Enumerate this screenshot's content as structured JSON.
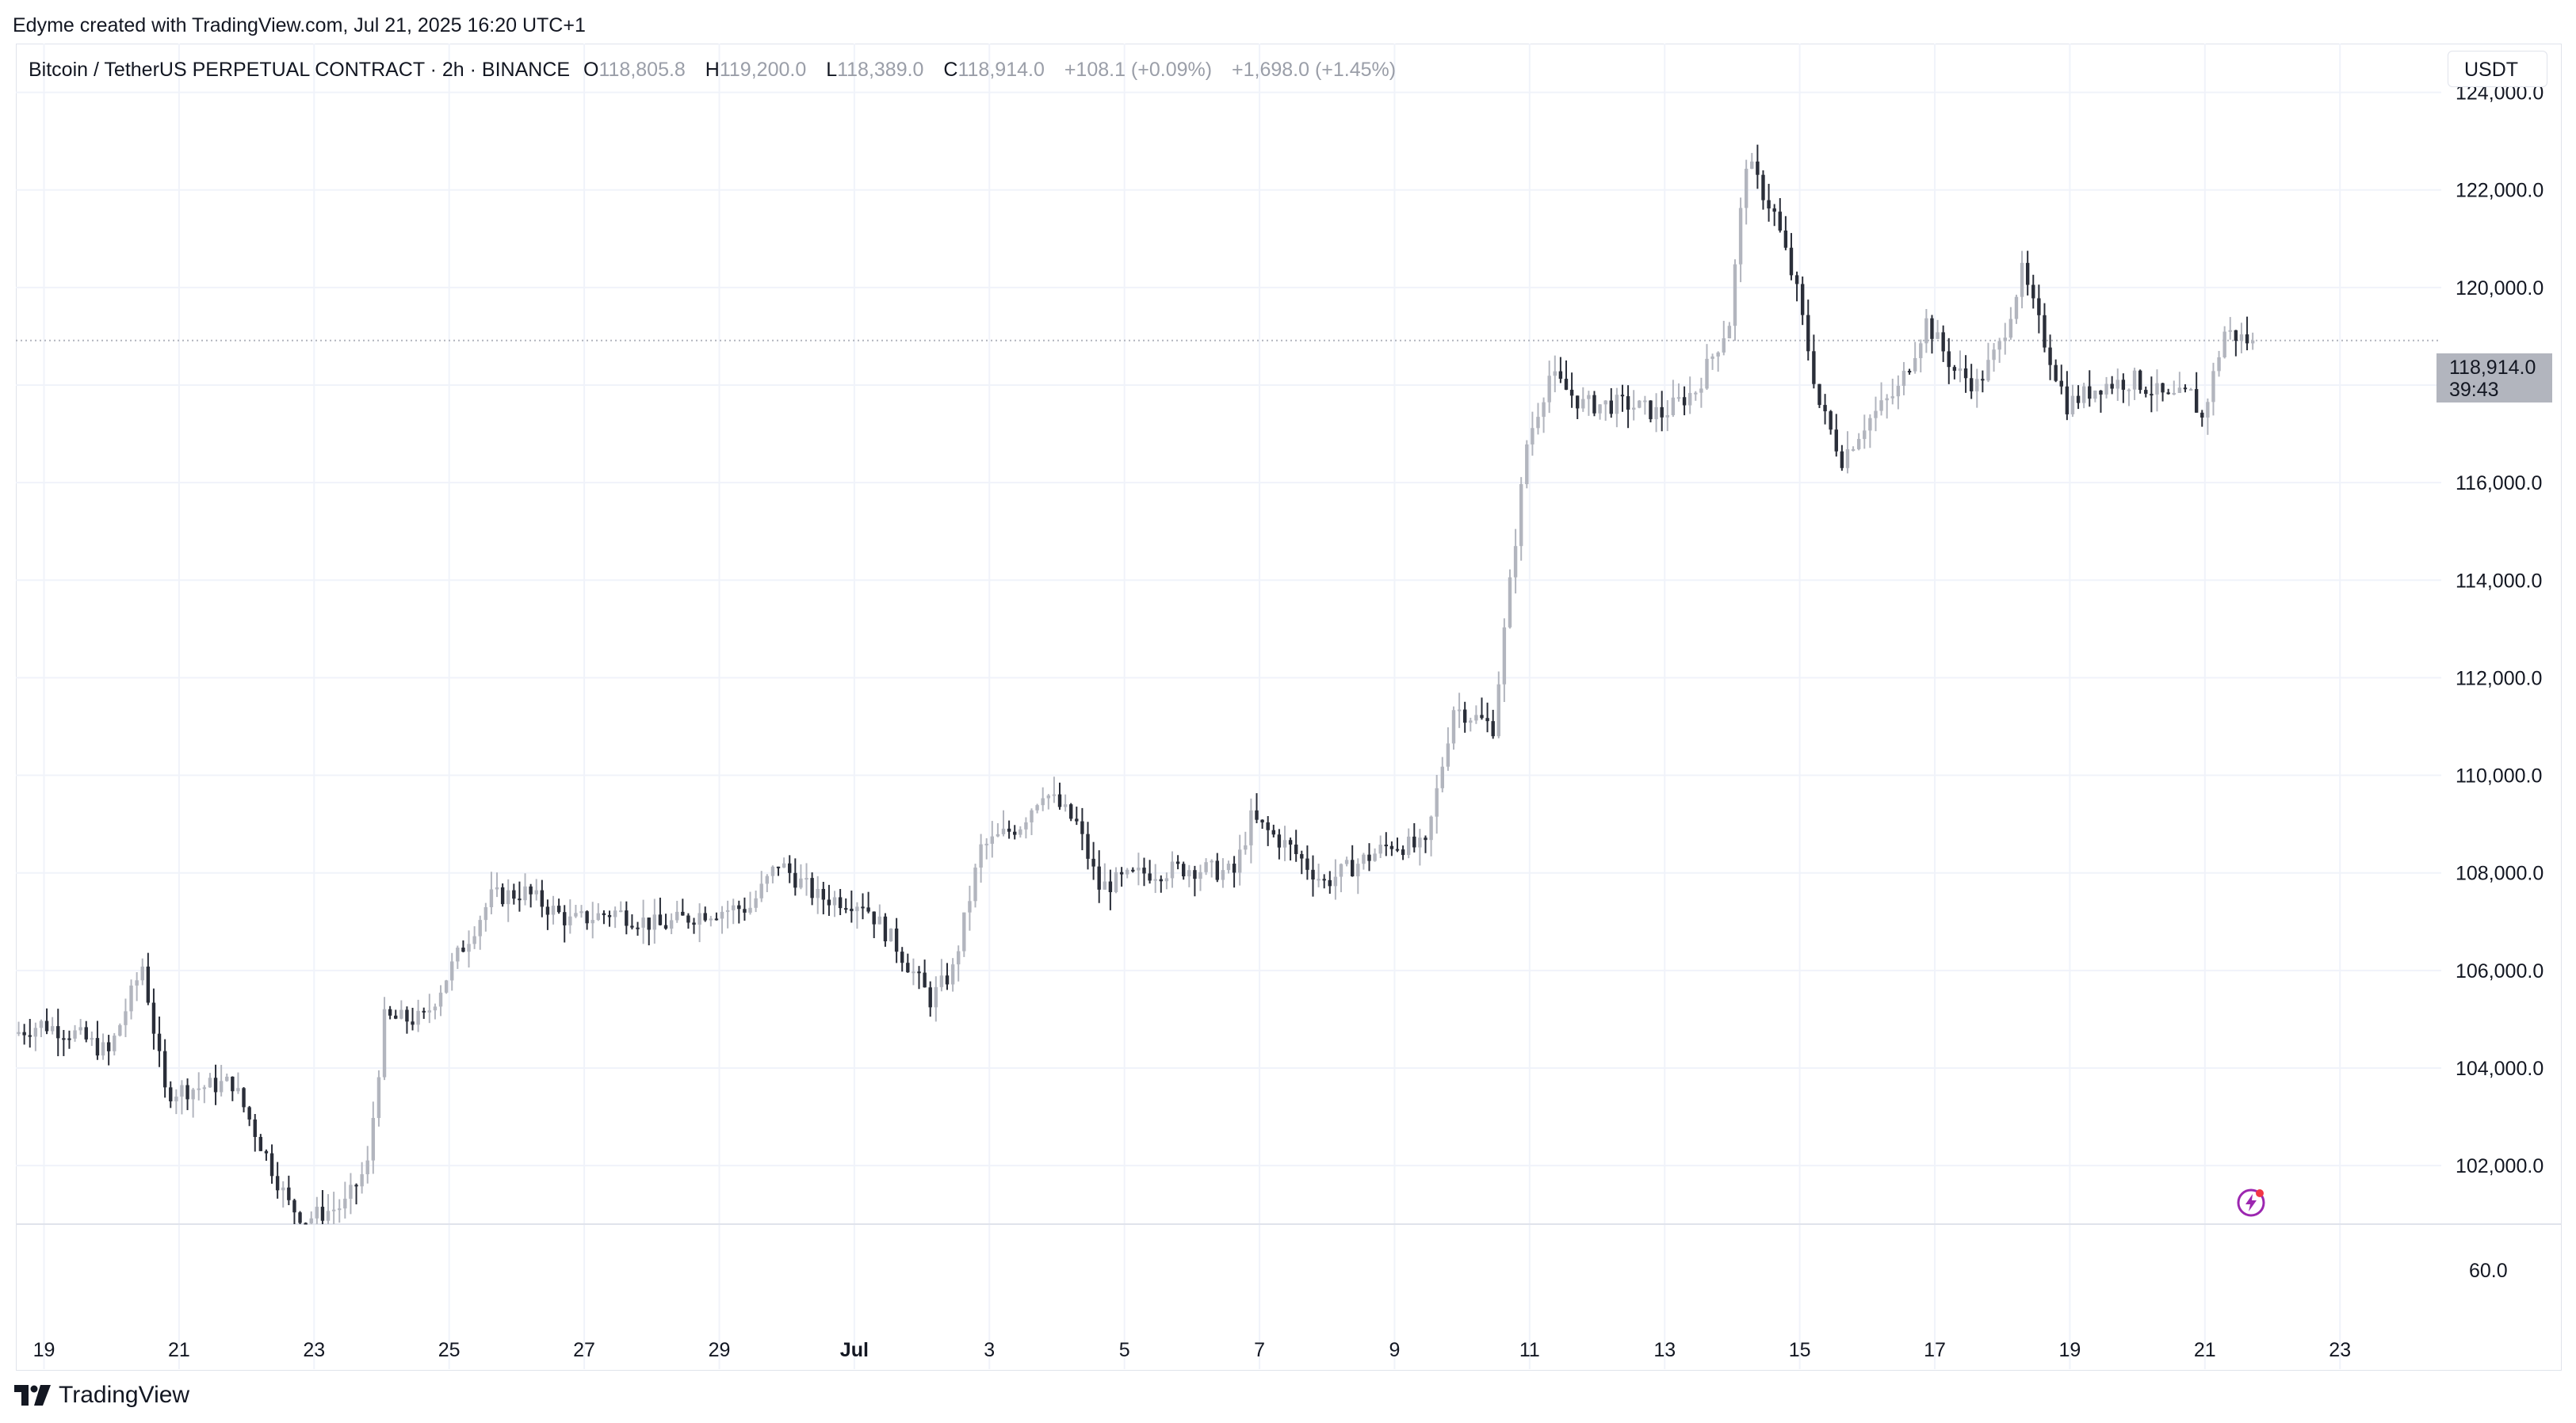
{
  "attribution": "Edyme created with TradingView.com, Jul 21, 2025 16:20 UTC+1",
  "legend": {
    "symbol": "Bitcoin / TetherUS PERPETUAL CONTRACT · 2h · BINANCE",
    "open_label": "O",
    "open": "118,805.8",
    "high_label": "H",
    "high": "119,200.0",
    "low_label": "L",
    "low": "118,389.0",
    "close_label": "C",
    "close": "118,914.0",
    "change": "+108.1 (+0.09%)",
    "change2": "+1,698.0 (+1.45%)"
  },
  "currency_button": "USDT",
  "price_tag": {
    "price": "118,914.0",
    "countdown": "39:43"
  },
  "footer": {
    "brand": "TradingView"
  },
  "icons": {
    "lightning": "lightning-icon",
    "logo": "tradingview-logo-icon"
  },
  "colors": {
    "candle_up": "#b2b5be",
    "candle_down": "#2a2e39",
    "grid": "#f0f3fa",
    "bolt": "#9c27b0"
  },
  "chart_data": {
    "type": "candlestick",
    "y_ticks": [
      "124,000.0",
      "122,000.0",
      "120,000.0",
      "118,000.0",
      "116,000.0",
      "114,000.0",
      "112,000.0",
      "110,000.0",
      "108,000.0",
      "106,000.0",
      "104,000.0",
      "102,000.0"
    ],
    "y_tick_values": [
      124000,
      122000,
      120000,
      118000,
      116000,
      114000,
      112000,
      110000,
      108000,
      106000,
      104000,
      102000
    ],
    "ylim": [
      100800,
      125000
    ],
    "lower_pane_tick": "60.0",
    "x_ticks": [
      "19",
      "21",
      "23",
      "25",
      "27",
      "29",
      "Jul",
      "3",
      "5",
      "7",
      "9",
      "11",
      "13",
      "15",
      "17",
      "19",
      "21",
      "23"
    ],
    "x_tick_dates": [
      "2025-06-19",
      "2025-06-21",
      "2025-06-23",
      "2025-06-25",
      "2025-06-27",
      "2025-06-29",
      "2025-07-01",
      "2025-07-03",
      "2025-07-05",
      "2025-07-07",
      "2025-07-09",
      "2025-07-11",
      "2025-07-13",
      "2025-07-15",
      "2025-07-17",
      "2025-07-19",
      "2025-07-21",
      "2025-07-23"
    ],
    "xlim": [
      "2025-06-18T14:00",
      "2025-07-24T12:00"
    ],
    "last_price": 118914.0,
    "daily_path": [
      [
        "2025-06-18T14:00",
        104700
      ],
      [
        "2025-06-19T00:00",
        104900
      ],
      [
        "2025-06-19T12:00",
        104700
      ],
      [
        "2025-06-20T00:00",
        104300
      ],
      [
        "2025-06-20T12:00",
        106100
      ],
      [
        "2025-06-20T20:00",
        103500
      ],
      [
        "2025-06-21T08:00",
        103600
      ],
      [
        "2025-06-21T20:00",
        103700
      ],
      [
        "2025-06-22T08:00",
        102200
      ],
      [
        "2025-06-22T16:00",
        101200
      ],
      [
        "2025-06-22T22:00",
        100900
      ],
      [
        "2025-06-23T12:00",
        101200
      ],
      [
        "2025-06-23T20:00",
        102000
      ],
      [
        "2025-06-24T02:00",
        105000
      ],
      [
        "2025-06-24T16:00",
        105000
      ],
      [
        "2025-06-25T04:00",
        106300
      ],
      [
        "2025-06-25T16:00",
        107500
      ],
      [
        "2025-06-26T04:00",
        107600
      ],
      [
        "2025-06-26T20:00",
        107000
      ],
      [
        "2025-06-27T12:00",
        107200
      ],
      [
        "2025-06-28T04:00",
        106900
      ],
      [
        "2025-06-28T20:00",
        107200
      ],
      [
        "2025-06-29T12:00",
        107300
      ],
      [
        "2025-06-29T22:00",
        108200
      ],
      [
        "2025-06-30T12:00",
        107500
      ],
      [
        "2025-07-01T04:00",
        107400
      ],
      [
        "2025-07-01T16:00",
        106500
      ],
      [
        "2025-07-02T04:00",
        105400
      ],
      [
        "2025-07-02T12:00",
        106000
      ],
      [
        "2025-07-02T22:00",
        108500
      ],
      [
        "2025-07-03T12:00",
        109000
      ],
      [
        "2025-07-03T20:00",
        109700
      ],
      [
        "2025-07-04T08:00",
        109000
      ],
      [
        "2025-07-04T16:00",
        107700
      ],
      [
        "2025-07-05T08:00",
        108000
      ],
      [
        "2025-07-06T00:00",
        108100
      ],
      [
        "2025-07-06T16:00",
        108000
      ],
      [
        "2025-07-06T22:00",
        109100
      ],
      [
        "2025-07-07T12:00",
        108500
      ],
      [
        "2025-07-08T00:00",
        107800
      ],
      [
        "2025-07-08T12:00",
        108200
      ],
      [
        "2025-07-09T00:00",
        108600
      ],
      [
        "2025-07-09T12:00",
        108500
      ],
      [
        "2025-07-09T22:00",
        111400
      ],
      [
        "2025-07-10T12:00",
        111000
      ],
      [
        "2025-07-10T18:00",
        113900
      ],
      [
        "2025-07-11T00:00",
        116800
      ],
      [
        "2025-07-11T08:00",
        118200
      ],
      [
        "2025-07-11T20:00",
        117600
      ],
      [
        "2025-07-12T12:00",
        117600
      ],
      [
        "2025-07-13T00:00",
        117400
      ],
      [
        "2025-07-13T12:00",
        117900
      ],
      [
        "2025-07-14T00:00",
        119300
      ],
      [
        "2025-07-14T06:00",
        122600
      ],
      [
        "2025-07-14T16:00",
        121500
      ],
      [
        "2025-07-15T00:00",
        119900
      ],
      [
        "2025-07-15T08:00",
        117600
      ],
      [
        "2025-07-15T16:00",
        116500
      ],
      [
        "2025-07-16T00:00",
        117200
      ],
      [
        "2025-07-16T12:00",
        117900
      ],
      [
        "2025-07-16T22:00",
        119300
      ],
      [
        "2025-07-17T08:00",
        118300
      ],
      [
        "2025-07-17T16:00",
        118000
      ],
      [
        "2025-07-18T00:00",
        118800
      ],
      [
        "2025-07-18T08:00",
        120300
      ],
      [
        "2025-07-18T16:00",
        118900
      ],
      [
        "2025-07-19T00:00",
        117600
      ],
      [
        "2025-07-19T12:00",
        118000
      ],
      [
        "2025-07-20T00:00",
        118100
      ],
      [
        "2025-07-20T12:00",
        117700
      ],
      [
        "2025-07-20T20:00",
        117800
      ],
      [
        "2025-07-21T00:00",
        117300
      ],
      [
        "2025-07-21T08:00",
        119100
      ],
      [
        "2025-07-21T16:00",
        118914
      ]
    ]
  }
}
